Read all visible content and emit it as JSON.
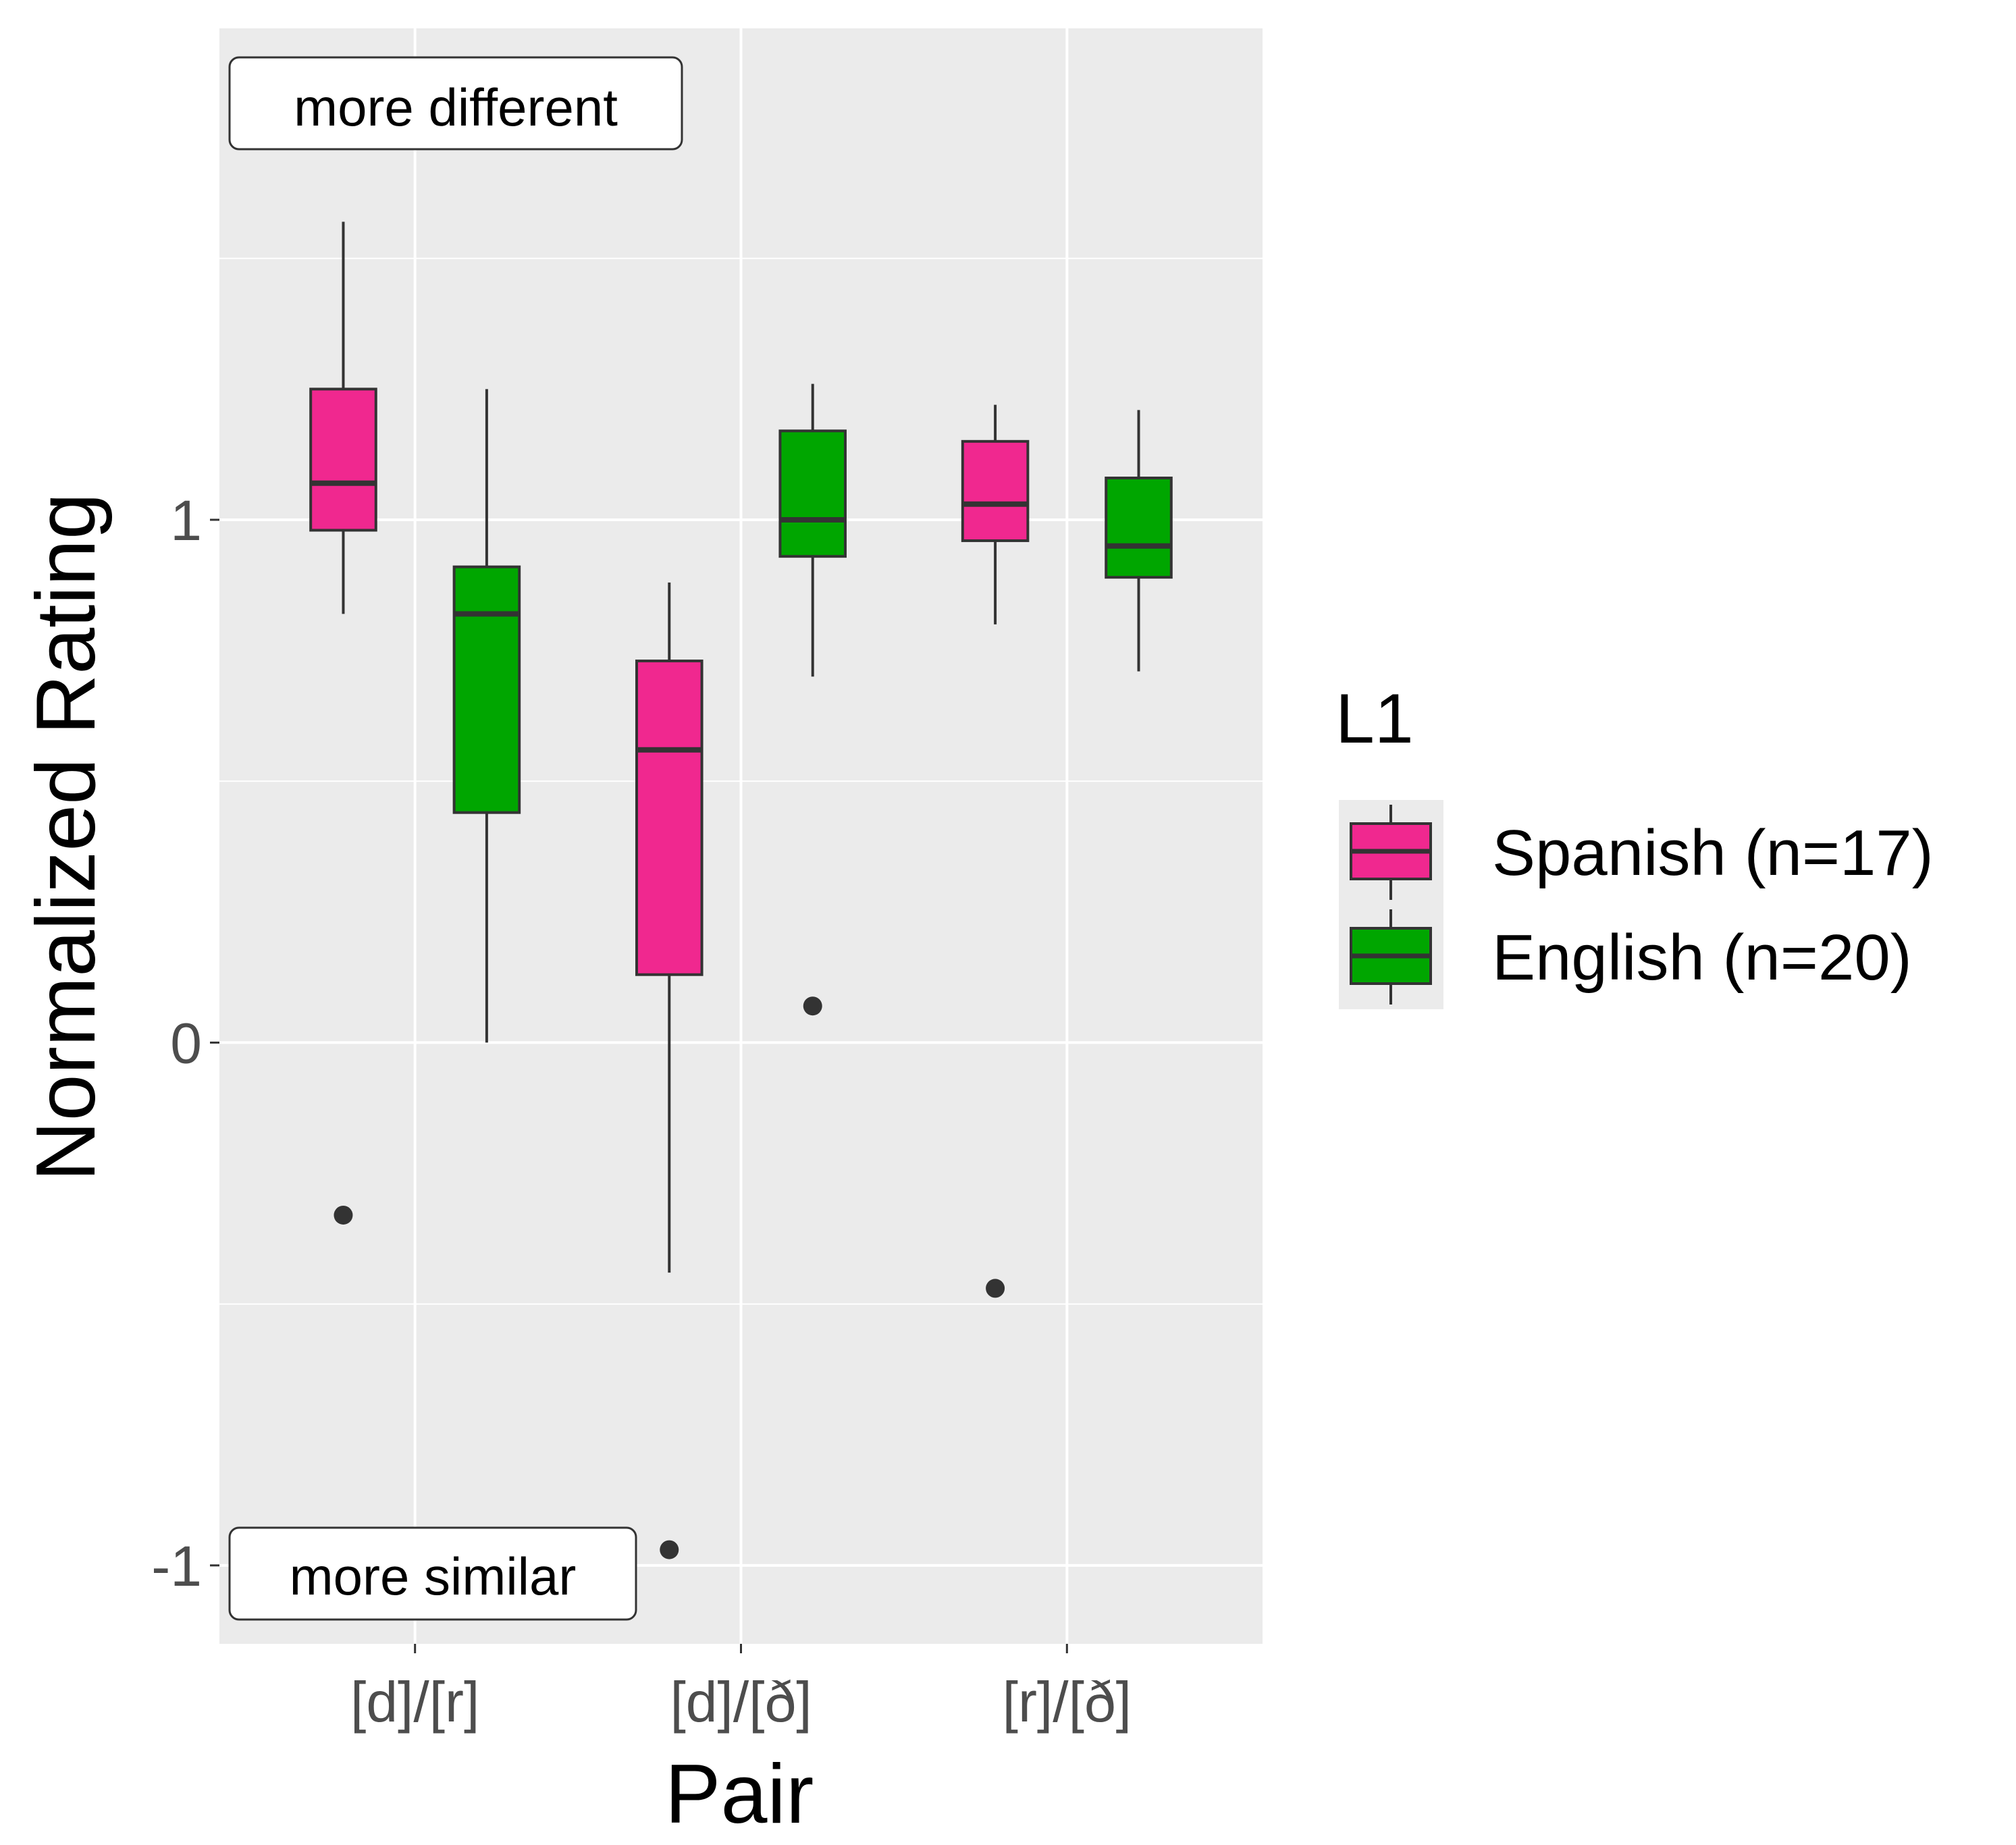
{
  "chart_data": {
    "type": "boxplot",
    "xlabel": "Pair",
    "ylabel": "Normalized Rating",
    "ylim": [
      -1.15,
      1.94
    ],
    "y_ticks": [
      -1,
      0,
      1
    ],
    "y_tick_labels": [
      "-1",
      "0",
      "1"
    ],
    "grid": true,
    "categories": [
      "[d]/[r]",
      "[d]/[ð]",
      "[r]/[ð]"
    ],
    "legend": {
      "title": "L1",
      "position": "right"
    },
    "series": [
      {
        "name": "Spanish (n=17)",
        "color": "#f0288f",
        "boxes": [
          {
            "category": "[d]/[r]",
            "whisker_low": 0.82,
            "q1": 0.98,
            "median": 1.07,
            "q3": 1.25,
            "whisker_high": 1.57,
            "outliers": [
              -0.33
            ]
          },
          {
            "category": "[d]/[ð]",
            "whisker_low": -0.44,
            "q1": 0.13,
            "median": 0.56,
            "q3": 0.73,
            "whisker_high": 0.88,
            "outliers": [
              -0.97
            ]
          },
          {
            "category": "[r]/[ð]",
            "whisker_low": 0.8,
            "q1": 0.96,
            "median": 1.03,
            "q3": 1.15,
            "whisker_high": 1.22,
            "outliers": [
              -0.47
            ]
          }
        ]
      },
      {
        "name": "English (n=20)",
        "color": "#00a600",
        "boxes": [
          {
            "category": "[d]/[r]",
            "whisker_low": 0.0,
            "q1": 0.44,
            "median": 0.82,
            "q3": 0.91,
            "whisker_high": 1.25,
            "outliers": []
          },
          {
            "category": "[d]/[ð]",
            "whisker_low": 0.7,
            "q1": 0.93,
            "median": 1.0,
            "q3": 1.17,
            "whisker_high": 1.26,
            "outliers": [
              0.07
            ]
          },
          {
            "category": "[r]/[ð]",
            "whisker_low": 0.71,
            "q1": 0.89,
            "median": 0.95,
            "q3": 1.08,
            "whisker_high": 1.21,
            "outliers": []
          }
        ]
      }
    ],
    "annotations": [
      {
        "text": "more different",
        "anchor": "top-left"
      },
      {
        "text": "more similar",
        "anchor": "bottom-left"
      }
    ]
  }
}
